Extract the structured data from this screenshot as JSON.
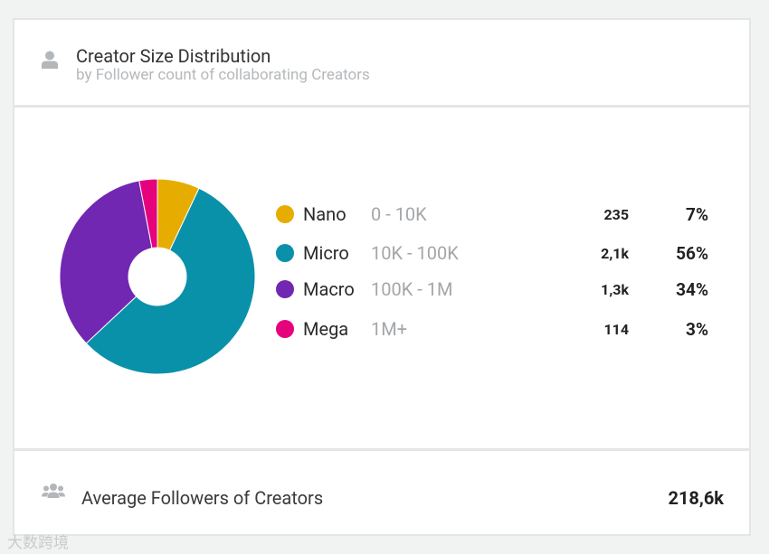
{
  "header": {
    "title": "Creator Size Distribution",
    "subtitle": "by Follower count of collaborating Creators",
    "icon": "user-icon"
  },
  "chart_data": {
    "type": "pie",
    "donut": true,
    "title": "Creator Size Distribution",
    "categories": [
      "Nano",
      "Micro",
      "Macro",
      "Mega"
    ],
    "ranges": [
      "0 - 10K",
      "10K - 100K",
      "100K - 1M",
      "1M+"
    ],
    "counts": [
      "235",
      "2,1k",
      "1,3k",
      "114"
    ],
    "percent_labels": [
      "7%",
      "56%",
      "34%",
      "3%"
    ],
    "values": [
      7,
      56,
      34,
      3
    ],
    "colors": [
      "#e6ad00",
      "#0a91aa",
      "#7227b2",
      "#e6017d"
    ],
    "legend": "right"
  },
  "footer": {
    "icon": "users-icon",
    "label": "Average Followers of Creators",
    "value": "218,6k"
  },
  "watermark": "大数跨境"
}
